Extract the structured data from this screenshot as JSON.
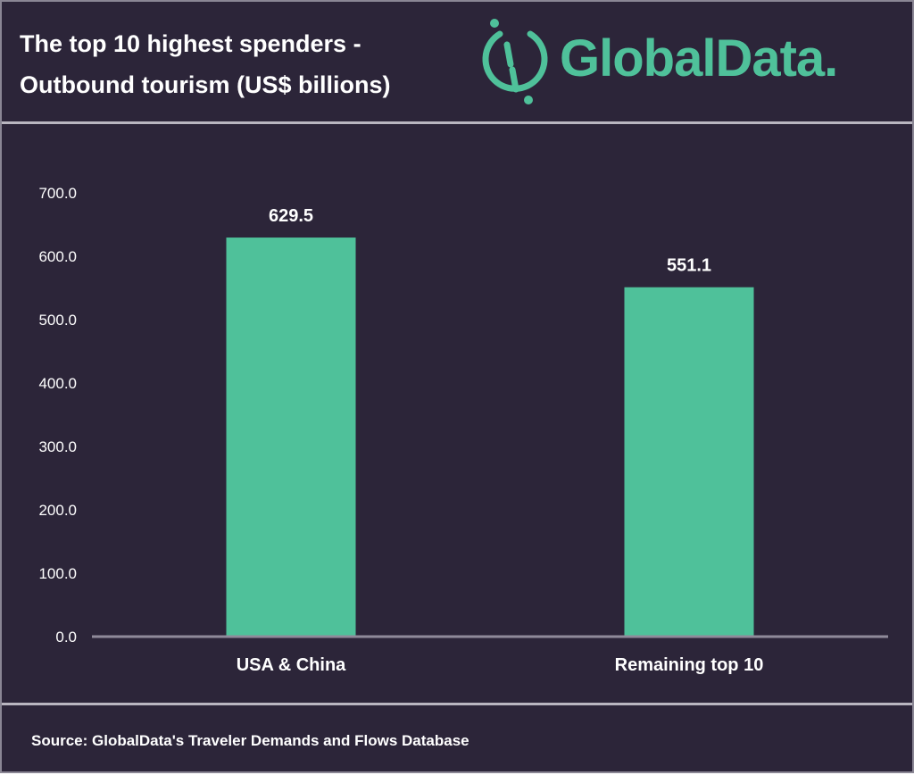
{
  "header": {
    "title_line1": "The top 10 highest spenders -",
    "title_line2": "Outbound tourism (US$ billions)",
    "logo_text": "GlobalData."
  },
  "footer": {
    "source": "Source: GlobalData's Traveler Demands and Flows Database"
  },
  "colors": {
    "background": "#2c2539",
    "bar": "#4fc19a",
    "text": "#ffffff",
    "axis": "#8f8a9a"
  },
  "chart_data": {
    "type": "bar",
    "title": "The top 10 highest spenders - Outbound tourism (US$ billions)",
    "categories": [
      "USA & China",
      "Remaining top 10"
    ],
    "values": [
      629.5,
      551.1
    ],
    "data_labels": [
      "629.5",
      "551.1"
    ],
    "yticks": [
      "0.0",
      "100.0",
      "200.0",
      "300.0",
      "400.0",
      "500.0",
      "600.0",
      "700.0"
    ],
    "ylim": [
      0,
      700
    ],
    "xlabel": "",
    "ylabel": "",
    "grid": false,
    "legend": "none"
  }
}
